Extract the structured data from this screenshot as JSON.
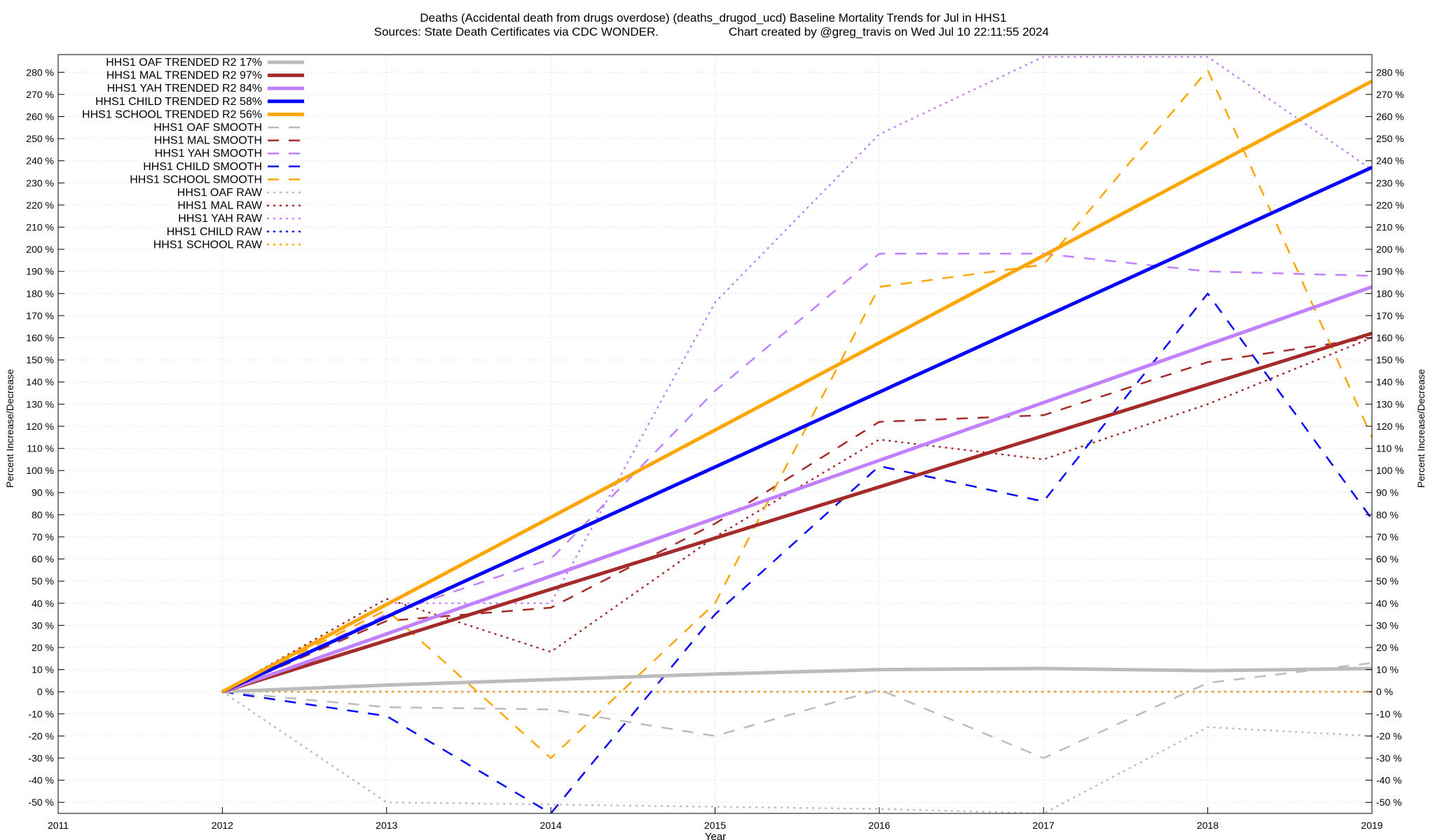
{
  "chart_data": {
    "type": "line",
    "title_line1": "Deaths (Accidental death from drugs overdose) (deaths_drugod_ucd)  Baseline Mortality Trends for Jul in HHS1",
    "title_line2_left": "Sources: State Death Certificates via CDC WONDER.",
    "title_line2_right": "Chart created by @greg_travis on Wed Jul 10 22:11:55 2024",
    "xlabel": "Year",
    "ylabel_left": "Percent Increase/Decrease",
    "ylabel_right": "Percent Increase/Decrease",
    "xlim": [
      2011,
      2019
    ],
    "ylim": [
      -55,
      288
    ],
    "x_ticks": [
      2011,
      2012,
      2013,
      2014,
      2015,
      2016,
      2017,
      2018,
      2019
    ],
    "y_ticks": [
      -50,
      -40,
      -30,
      -20,
      -10,
      0,
      10,
      20,
      30,
      40,
      50,
      60,
      70,
      80,
      90,
      100,
      110,
      120,
      130,
      140,
      150,
      160,
      170,
      180,
      190,
      200,
      210,
      220,
      230,
      240,
      250,
      260,
      270,
      280
    ],
    "y_tick_suffix": " %",
    "grid": true,
    "legend_position": "top-left",
    "colors": {
      "oaf": "#bbbbbb",
      "mal": "#a52a2a",
      "yah": "#c080ff",
      "child": "#0000ff",
      "school": "#ffa500"
    },
    "series": [
      {
        "name": "HHS1 OAF TRENDED R2  17%",
        "group": "oaf",
        "style": "trend",
        "x": [
          2012,
          2013,
          2014,
          2015,
          2016,
          2017,
          2018,
          2019
        ],
        "values": [
          0,
          3,
          5.5,
          8,
          10,
          10.5,
          9.5,
          10.5
        ]
      },
      {
        "name": "HHS1 MAL TRENDED R2  97%",
        "group": "mal",
        "style": "trend",
        "x": [
          2012,
          2019
        ],
        "values": [
          0,
          162
        ]
      },
      {
        "name": "HHS1 YAH TRENDED R2  84%",
        "group": "yah",
        "style": "trend",
        "x": [
          2012,
          2019
        ],
        "values": [
          0,
          183
        ]
      },
      {
        "name": "HHS1 CHILD TRENDED R2  58%",
        "group": "child",
        "style": "trend",
        "x": [
          2012,
          2019
        ],
        "values": [
          0,
          237
        ]
      },
      {
        "name": "HHS1 SCHOOL TRENDED R2  56%",
        "group": "school",
        "style": "trend",
        "x": [
          2012,
          2019
        ],
        "values": [
          0,
          276
        ]
      },
      {
        "name": "HHS1 OAF SMOOTH",
        "group": "oaf",
        "style": "smooth",
        "x": [
          2012,
          2013,
          2014,
          2015,
          2016,
          2017,
          2018,
          2019
        ],
        "values": [
          0,
          -7,
          -8,
          -20,
          1,
          -30,
          4,
          13
        ]
      },
      {
        "name": "HHS1 MAL SMOOTH",
        "group": "mal",
        "style": "smooth",
        "x": [
          2012,
          2013,
          2014,
          2015,
          2016,
          2017,
          2018,
          2019
        ],
        "values": [
          0,
          32,
          38,
          76,
          122,
          125,
          149,
          160
        ]
      },
      {
        "name": "HHS1 YAH SMOOTH",
        "group": "yah",
        "style": "smooth",
        "x": [
          2012,
          2013,
          2014,
          2015,
          2016,
          2017,
          2018,
          2019
        ],
        "values": [
          0,
          35,
          60,
          136,
          198,
          198,
          190,
          188
        ]
      },
      {
        "name": "HHS1 CHILD SMOOTH",
        "group": "child",
        "style": "smooth",
        "x": [
          2012,
          2013,
          2014,
          2015,
          2016,
          2017,
          2018,
          2019
        ],
        "values": [
          0,
          -11,
          -55,
          35,
          102,
          86,
          180,
          78
        ]
      },
      {
        "name": "HHS1 SCHOOL SMOOTH",
        "group": "school",
        "style": "smooth",
        "x": [
          2012,
          2013,
          2014,
          2015,
          2016,
          2017,
          2018,
          2019
        ],
        "values": [
          0,
          37,
          -30,
          40,
          183,
          193,
          281,
          115
        ]
      },
      {
        "name": "HHS1 OAF RAW",
        "group": "oaf",
        "style": "raw",
        "x": [
          2012,
          2013,
          2014,
          2015,
          2016,
          2017,
          2018,
          2019
        ],
        "values": [
          0,
          -50,
          -51,
          -52,
          -53,
          -55,
          -16,
          -20
        ]
      },
      {
        "name": "HHS1 MAL RAW",
        "group": "mal",
        "style": "raw",
        "x": [
          2012,
          2013,
          2014,
          2015,
          2016,
          2017,
          2018,
          2019
        ],
        "values": [
          0,
          42,
          18,
          70,
          114,
          105,
          130,
          160
        ]
      },
      {
        "name": "HHS1 YAH RAW",
        "group": "yah",
        "style": "raw",
        "x": [
          2012,
          2013,
          2014,
          2015,
          2016,
          2017,
          2018,
          2019
        ],
        "values": [
          0,
          40,
          40,
          176,
          252,
          287,
          287,
          236
        ]
      },
      {
        "name": "HHS1 CHILD RAW",
        "group": "child",
        "style": "raw",
        "x": [
          2012,
          2013,
          2014,
          2015,
          2016,
          2017,
          2018,
          2019
        ],
        "values": [
          0,
          0,
          0,
          0,
          0,
          0,
          0,
          0
        ]
      },
      {
        "name": "HHS1 SCHOOL RAW",
        "group": "school",
        "style": "raw",
        "x": [
          2012,
          2019
        ],
        "values": [
          0,
          0
        ]
      }
    ]
  }
}
